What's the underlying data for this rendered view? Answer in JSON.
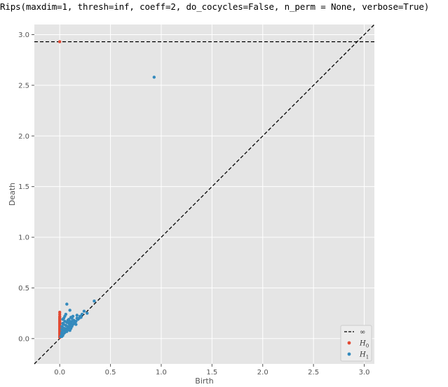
{
  "console": {
    "command": "Rips(maxdim=1, thresh=inf, coeff=2, do_cocycles=False, n_perm = None, verbose=True)"
  },
  "colors": {
    "plot_background": "#e5e5e5",
    "grid": "#ffffff",
    "h0": "#e24a33",
    "h1": "#348abd",
    "diagonal": "#000000",
    "tick_text": "#555555"
  },
  "chart_data": {
    "type": "scatter",
    "title": "",
    "xlabel": "Birth",
    "ylabel": "Death",
    "xlim": [
      -0.25,
      3.1
    ],
    "ylim": [
      -0.25,
      3.1
    ],
    "grid": true,
    "legend_position": "lower-right",
    "x_ticks": [
      0.0,
      0.5,
      1.0,
      1.5,
      2.0,
      2.5,
      3.0
    ],
    "x_tick_labels": [
      "0.0",
      "0.5",
      "1.0",
      "1.5",
      "2.0",
      "2.5",
      "3.0"
    ],
    "y_ticks": [
      0.0,
      0.5,
      1.0,
      1.5,
      2.0,
      2.5,
      3.0
    ],
    "y_tick_labels": [
      "0.0",
      "0.5",
      "1.0",
      "1.5",
      "2.0",
      "2.5",
      "3.0"
    ],
    "infinity_line": {
      "label": "∞",
      "y": 2.93
    },
    "diagonal": {
      "from": [
        -0.25,
        -0.25
      ],
      "to": [
        3.1,
        3.1
      ]
    },
    "legend": [
      {
        "label": "∞",
        "kind": "dashed-line"
      },
      {
        "label": "H",
        "sub": "0",
        "kind": "h0"
      },
      {
        "label": "H",
        "sub": "1",
        "kind": "h1"
      }
    ],
    "series": [
      {
        "name": "H0",
        "points": [
          [
            0,
            2.93
          ],
          [
            0,
            0.26
          ],
          [
            0,
            0.24
          ],
          [
            0,
            0.22
          ],
          [
            0,
            0.21
          ],
          [
            0,
            0.2
          ],
          [
            0,
            0.19
          ],
          [
            0,
            0.18
          ],
          [
            0,
            0.17
          ],
          [
            0,
            0.16
          ],
          [
            0,
            0.15
          ],
          [
            0,
            0.14
          ],
          [
            0,
            0.13
          ],
          [
            0,
            0.12
          ],
          [
            0,
            0.11
          ],
          [
            0,
            0.1
          ],
          [
            0,
            0.09
          ],
          [
            0,
            0.08
          ],
          [
            0,
            0.07
          ],
          [
            0,
            0.06
          ],
          [
            0,
            0.05
          ],
          [
            0,
            0.04
          ],
          [
            0,
            0.03
          ],
          [
            0,
            0.02
          ],
          [
            0,
            0.01
          ]
        ]
      },
      {
        "name": "H1",
        "points": [
          [
            0.93,
            2.58
          ],
          [
            0.34,
            0.37
          ],
          [
            0.07,
            0.34
          ],
          [
            0.1,
            0.28
          ],
          [
            0.24,
            0.27
          ],
          [
            0.27,
            0.25
          ],
          [
            0.22,
            0.24
          ],
          [
            0.2,
            0.22
          ],
          [
            0.17,
            0.23
          ],
          [
            0.17,
            0.2
          ],
          [
            0.13,
            0.22
          ],
          [
            0.11,
            0.21
          ],
          [
            0.06,
            0.24
          ],
          [
            0.05,
            0.22
          ],
          [
            0.04,
            0.2
          ],
          [
            0.03,
            0.19
          ],
          [
            0.08,
            0.18
          ],
          [
            0.1,
            0.17
          ],
          [
            0.12,
            0.17
          ],
          [
            0.14,
            0.18
          ],
          [
            0.16,
            0.17
          ],
          [
            0.18,
            0.19
          ],
          [
            0.05,
            0.17
          ],
          [
            0.07,
            0.16
          ],
          [
            0.09,
            0.15
          ],
          [
            0.11,
            0.15
          ],
          [
            0.13,
            0.14
          ],
          [
            0.15,
            0.16
          ],
          [
            0.03,
            0.15
          ],
          [
            0.04,
            0.14
          ],
          [
            0.06,
            0.13
          ],
          [
            0.08,
            0.12
          ],
          [
            0.1,
            0.13
          ],
          [
            0.12,
            0.12
          ],
          [
            0.02,
            0.12
          ],
          [
            0.03,
            0.11
          ],
          [
            0.05,
            0.1
          ],
          [
            0.07,
            0.1
          ],
          [
            0.09,
            0.11
          ],
          [
            0.11,
            0.1
          ],
          [
            0.02,
            0.09
          ],
          [
            0.04,
            0.08
          ],
          [
            0.06,
            0.08
          ],
          [
            0.08,
            0.09
          ],
          [
            0.1,
            0.08
          ],
          [
            0.02,
            0.06
          ],
          [
            0.03,
            0.05
          ],
          [
            0.05,
            0.06
          ],
          [
            0.07,
            0.07
          ],
          [
            0.02,
            0.04
          ],
          [
            0.03,
            0.03
          ],
          [
            0.04,
            0.05
          ],
          [
            0.01,
            0.02
          ],
          [
            0.02,
            0.02
          ],
          [
            0.19,
            0.2
          ],
          [
            0.21,
            0.21
          ],
          [
            0.14,
            0.15
          ],
          [
            0.16,
            0.14
          ],
          [
            0.09,
            0.19
          ],
          [
            0.12,
            0.2
          ]
        ]
      }
    ]
  }
}
